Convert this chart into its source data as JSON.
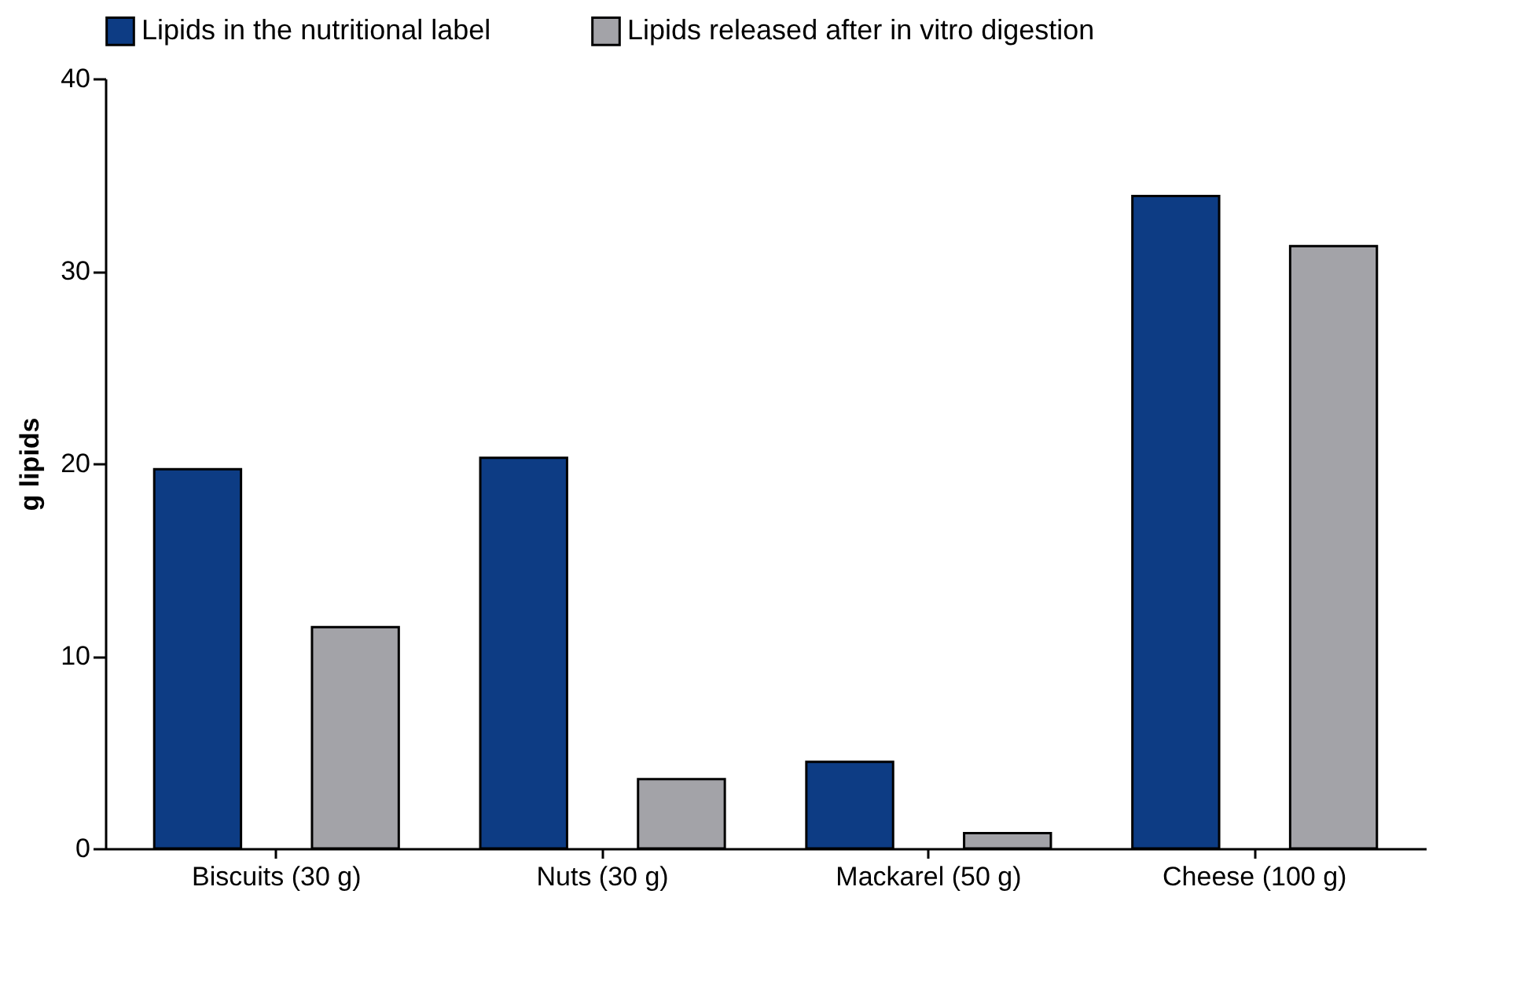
{
  "chart_data": {
    "type": "bar",
    "ylabel": "g lipids",
    "categories": [
      "Biscuits (30 g)",
      "Nuts (30 g)",
      "Mackarel (50 g)",
      "Cheese (100 g)"
    ],
    "series": [
      {
        "name": "Lipids in the nutritional label",
        "color": "#0d3c84",
        "values": [
          19.7,
          20.3,
          4.5,
          33.9
        ]
      },
      {
        "name": "Lipids released after in vitro digestion",
        "color": "#a3a3a8",
        "values": [
          11.5,
          3.6,
          0.8,
          31.3
        ]
      }
    ],
    "ylim": [
      0,
      40
    ],
    "yticks": [
      0,
      10,
      20,
      30,
      40
    ],
    "grid": false,
    "legend": "top"
  }
}
